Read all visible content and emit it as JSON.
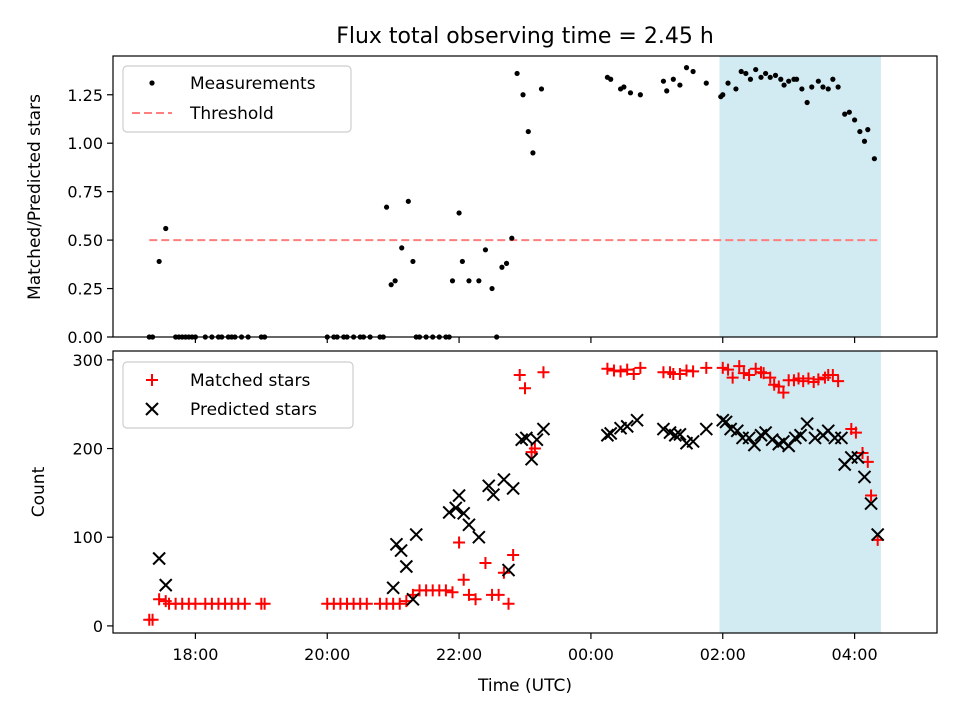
{
  "title": "Flux total observing time = 2.45 h",
  "xlabel": "Time (UTC)",
  "x_ticks": [
    {
      "t": 18,
      "label": "18:00"
    },
    {
      "t": 20,
      "label": "20:00"
    },
    {
      "t": 22,
      "label": "22:00"
    },
    {
      "t": 24,
      "label": "00:00"
    },
    {
      "t": 26,
      "label": "02:00"
    },
    {
      "t": 28,
      "label": "04:00"
    }
  ],
  "x_range": [
    16.75,
    29.25
  ],
  "highlight": {
    "start": 25.95,
    "end": 28.4,
    "color": "#add8e6"
  },
  "colors": {
    "measure": "#000000",
    "threshold": "#ff7f7f",
    "matched": "#ff0000",
    "predicted": "#000000",
    "highlight": "#add8e6"
  },
  "chart_data": [
    {
      "type": "scatter",
      "ylabel": "Matched/Predicted stars",
      "ylim": [
        0,
        1.45
      ],
      "y_ticks": [
        "0.00",
        "0.25",
        "0.50",
        "0.75",
        "1.00",
        "1.25"
      ],
      "y_tick_values": [
        0,
        0.25,
        0.5,
        0.75,
        1.0,
        1.25
      ],
      "legend": {
        "measurements": "Measurements",
        "threshold": "Threshold"
      },
      "threshold": {
        "value": 0.5,
        "x_start": 17.3,
        "x_end": 28.4
      },
      "measurements": [
        [
          17.3,
          0
        ],
        [
          17.35,
          0
        ],
        [
          17.45,
          0.39
        ],
        [
          17.55,
          0.56
        ],
        [
          17.7,
          0
        ],
        [
          17.75,
          0
        ],
        [
          17.8,
          0
        ],
        [
          17.85,
          0
        ],
        [
          17.9,
          0
        ],
        [
          17.95,
          0
        ],
        [
          18.0,
          0
        ],
        [
          18.15,
          0
        ],
        [
          18.25,
          0
        ],
        [
          18.35,
          0
        ],
        [
          18.4,
          0
        ],
        [
          18.5,
          0
        ],
        [
          18.55,
          0
        ],
        [
          18.6,
          0
        ],
        [
          18.7,
          0
        ],
        [
          18.8,
          0
        ],
        [
          19.0,
          0
        ],
        [
          19.05,
          0
        ],
        [
          20.0,
          0
        ],
        [
          20.1,
          0
        ],
        [
          20.15,
          0
        ],
        [
          20.25,
          0
        ],
        [
          20.3,
          0
        ],
        [
          20.4,
          0
        ],
        [
          20.5,
          0
        ],
        [
          20.55,
          0
        ],
        [
          20.65,
          0
        ],
        [
          20.8,
          0
        ],
        [
          20.85,
          0
        ],
        [
          20.9,
          0.67
        ],
        [
          20.97,
          0.27
        ],
        [
          21.03,
          0.29
        ],
        [
          21.13,
          0.46
        ],
        [
          21.23,
          0.7
        ],
        [
          21.3,
          0.39
        ],
        [
          21.35,
          0
        ],
        [
          21.4,
          0
        ],
        [
          21.5,
          0
        ],
        [
          21.6,
          0
        ],
        [
          21.7,
          0
        ],
        [
          21.8,
          0
        ],
        [
          21.85,
          0
        ],
        [
          21.9,
          0.29
        ],
        [
          22.0,
          0.64
        ],
        [
          22.05,
          0.39
        ],
        [
          22.15,
          0.29
        ],
        [
          22.3,
          0.29
        ],
        [
          22.4,
          0.45
        ],
        [
          22.5,
          0.25
        ],
        [
          22.57,
          0
        ],
        [
          22.65,
          0.36
        ],
        [
          22.72,
          0.38
        ],
        [
          22.8,
          0.51
        ],
        [
          22.88,
          1.36
        ],
        [
          22.97,
          1.25
        ],
        [
          23.05,
          1.06
        ],
        [
          23.12,
          0.95
        ],
        [
          23.25,
          1.28
        ],
        [
          24.25,
          1.34
        ],
        [
          24.3,
          1.33
        ],
        [
          24.45,
          1.28
        ],
        [
          24.5,
          1.29
        ],
        [
          24.6,
          1.26
        ],
        [
          24.75,
          1.25
        ],
        [
          25.1,
          1.32
        ],
        [
          25.15,
          1.27
        ],
        [
          25.25,
          1.33
        ],
        [
          25.35,
          1.3
        ],
        [
          25.45,
          1.39
        ],
        [
          25.55,
          1.37
        ],
        [
          25.75,
          1.31
        ],
        [
          25.97,
          1.24
        ],
        [
          26.0,
          1.25
        ],
        [
          26.08,
          1.31
        ],
        [
          26.2,
          1.28
        ],
        [
          26.28,
          1.37
        ],
        [
          26.35,
          1.36
        ],
        [
          26.42,
          1.33
        ],
        [
          26.5,
          1.38
        ],
        [
          26.58,
          1.34
        ],
        [
          26.65,
          1.36
        ],
        [
          26.72,
          1.34
        ],
        [
          26.8,
          1.35
        ],
        [
          26.88,
          1.33
        ],
        [
          26.93,
          1.3
        ],
        [
          27.0,
          1.32
        ],
        [
          27.08,
          1.33
        ],
        [
          27.12,
          1.33
        ],
        [
          27.2,
          1.28
        ],
        [
          27.28,
          1.21
        ],
        [
          27.35,
          1.29
        ],
        [
          27.45,
          1.32
        ],
        [
          27.52,
          1.29
        ],
        [
          27.6,
          1.28
        ],
        [
          27.67,
          1.33
        ],
        [
          27.75,
          1.29
        ],
        [
          27.85,
          1.15
        ],
        [
          27.92,
          1.16
        ],
        [
          28.0,
          1.12
        ],
        [
          28.08,
          1.06
        ],
        [
          28.15,
          1.01
        ],
        [
          28.2,
          1.07
        ],
        [
          28.3,
          0.92
        ]
      ]
    },
    {
      "type": "scatter",
      "ylabel": "Count",
      "ylim": [
        -8,
        310
      ],
      "y_ticks": [
        "0",
        "100",
        "200",
        "300"
      ],
      "y_tick_values": [
        0,
        100,
        200,
        300
      ],
      "legend": {
        "matched": "Matched stars",
        "predicted": "Predicted stars"
      },
      "matched": [
        [
          17.3,
          7
        ],
        [
          17.35,
          7
        ],
        [
          17.45,
          30
        ],
        [
          17.55,
          28
        ],
        [
          17.6,
          25
        ],
        [
          17.7,
          25
        ],
        [
          17.8,
          25
        ],
        [
          17.9,
          25
        ],
        [
          18.0,
          25
        ],
        [
          18.15,
          25
        ],
        [
          18.25,
          25
        ],
        [
          18.35,
          25
        ],
        [
          18.45,
          25
        ],
        [
          18.55,
          25
        ],
        [
          18.65,
          25
        ],
        [
          18.75,
          25
        ],
        [
          19.0,
          25
        ],
        [
          19.05,
          25
        ],
        [
          20.0,
          25
        ],
        [
          20.1,
          25
        ],
        [
          20.2,
          25
        ],
        [
          20.3,
          25
        ],
        [
          20.4,
          25
        ],
        [
          20.5,
          25
        ],
        [
          20.6,
          25
        ],
        [
          20.8,
          25
        ],
        [
          20.9,
          25
        ],
        [
          21.0,
          25
        ],
        [
          21.1,
          25
        ],
        [
          21.2,
          28
        ],
        [
          21.3,
          35
        ],
        [
          21.4,
          40
        ],
        [
          21.5,
          40
        ],
        [
          21.6,
          40
        ],
        [
          21.7,
          40
        ],
        [
          21.8,
          40
        ],
        [
          21.9,
          38
        ],
        [
          22.0,
          94
        ],
        [
          22.07,
          52
        ],
        [
          22.15,
          35
        ],
        [
          22.25,
          30
        ],
        [
          22.4,
          71
        ],
        [
          22.5,
          35
        ],
        [
          22.6,
          35
        ],
        [
          22.68,
          60
        ],
        [
          22.75,
          25
        ],
        [
          22.82,
          80
        ],
        [
          22.92,
          283
        ],
        [
          23.0,
          268
        ],
        [
          23.1,
          196
        ],
        [
          23.15,
          200
        ],
        [
          23.28,
          286
        ],
        [
          24.25,
          290
        ],
        [
          24.35,
          288
        ],
        [
          24.45,
          287
        ],
        [
          24.55,
          289
        ],
        [
          24.65,
          284
        ],
        [
          24.75,
          291
        ],
        [
          25.1,
          286
        ],
        [
          25.2,
          286
        ],
        [
          25.25,
          284
        ],
        [
          25.35,
          284
        ],
        [
          25.45,
          288
        ],
        [
          25.55,
          287
        ],
        [
          25.75,
          291
        ],
        [
          26.0,
          291
        ],
        [
          26.08,
          289
        ],
        [
          26.15,
          280
        ],
        [
          26.25,
          293
        ],
        [
          26.32,
          285
        ],
        [
          26.4,
          283
        ],
        [
          26.5,
          290
        ],
        [
          26.58,
          286
        ],
        [
          26.62,
          285
        ],
        [
          26.72,
          280
        ],
        [
          26.78,
          272
        ],
        [
          26.85,
          270
        ],
        [
          26.92,
          263
        ],
        [
          27.0,
          277
        ],
        [
          27.08,
          277
        ],
        [
          27.15,
          279
        ],
        [
          27.22,
          276
        ],
        [
          27.3,
          279
        ],
        [
          27.38,
          275
        ],
        [
          27.45,
          278
        ],
        [
          27.55,
          280
        ],
        [
          27.6,
          283
        ],
        [
          27.67,
          283
        ],
        [
          27.75,
          276
        ],
        [
          27.95,
          222
        ],
        [
          28.02,
          218
        ],
        [
          28.12,
          195
        ],
        [
          28.2,
          185
        ],
        [
          28.25,
          147
        ],
        [
          28.35,
          97
        ]
      ],
      "predicted": [
        [
          17.45,
          76
        ],
        [
          17.55,
          46
        ],
        [
          21.0,
          43
        ],
        [
          21.05,
          92
        ],
        [
          21.12,
          85
        ],
        [
          21.2,
          67
        ],
        [
          21.3,
          30
        ],
        [
          21.35,
          103
        ],
        [
          21.85,
          128
        ],
        [
          21.95,
          133
        ],
        [
          22.0,
          147
        ],
        [
          22.07,
          127
        ],
        [
          22.15,
          114
        ],
        [
          22.3,
          100
        ],
        [
          22.45,
          158
        ],
        [
          22.52,
          148
        ],
        [
          22.68,
          165
        ],
        [
          22.75,
          63
        ],
        [
          22.82,
          155
        ],
        [
          22.95,
          210
        ],
        [
          23.02,
          212
        ],
        [
          23.1,
          188
        ],
        [
          23.18,
          210
        ],
        [
          23.28,
          222
        ],
        [
          24.25,
          215
        ],
        [
          24.3,
          217
        ],
        [
          24.45,
          223
        ],
        [
          24.55,
          225
        ],
        [
          24.7,
          232
        ],
        [
          25.1,
          222
        ],
        [
          25.2,
          218
        ],
        [
          25.28,
          215
        ],
        [
          25.35,
          216
        ],
        [
          25.45,
          206
        ],
        [
          25.55,
          208
        ],
        [
          25.75,
          222
        ],
        [
          26.0,
          232
        ],
        [
          26.05,
          230
        ],
        [
          26.12,
          222
        ],
        [
          26.22,
          220
        ],
        [
          26.3,
          212
        ],
        [
          26.4,
          212
        ],
        [
          26.48,
          204
        ],
        [
          26.58,
          215
        ],
        [
          26.65,
          218
        ],
        [
          26.75,
          210
        ],
        [
          26.85,
          205
        ],
        [
          26.92,
          208
        ],
        [
          27.0,
          203
        ],
        [
          27.1,
          212
        ],
        [
          27.18,
          215
        ],
        [
          27.28,
          228
        ],
        [
          27.4,
          212
        ],
        [
          27.52,
          215
        ],
        [
          27.6,
          220
        ],
        [
          27.7,
          212
        ],
        [
          27.8,
          212
        ],
        [
          27.85,
          182
        ],
        [
          27.95,
          190
        ],
        [
          28.05,
          190
        ],
        [
          28.15,
          168
        ],
        [
          28.25,
          138
        ],
        [
          28.35,
          103
        ]
      ]
    }
  ]
}
